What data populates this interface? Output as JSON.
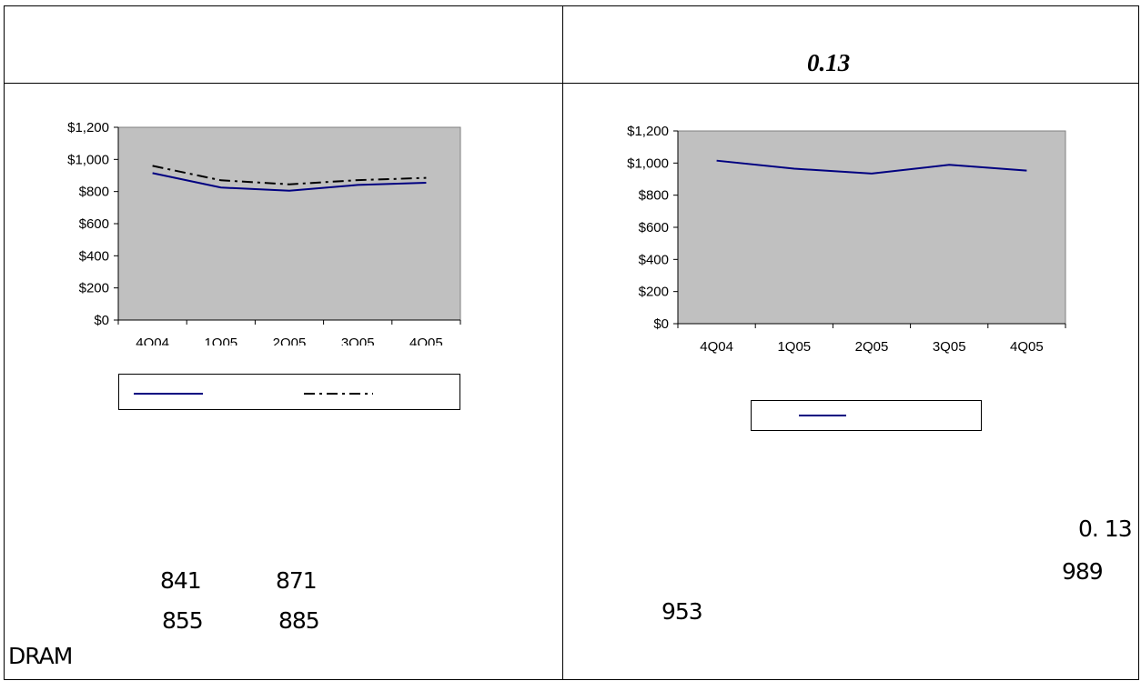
{
  "header": {
    "right_title": "0.13"
  },
  "colors": {
    "plot_bg": "#c0c0c0",
    "series_solid": "#000080",
    "series_dash": "#000000",
    "axis": "#000000"
  },
  "chart_data": [
    {
      "type": "line",
      "categories": [
        "4Q04",
        "1Q05",
        "2Q05",
        "3Q05",
        "4Q05"
      ],
      "ylim": [
        0,
        1200
      ],
      "yticks": [
        "$0",
        "$200",
        "$400",
        "$600",
        "$800",
        "$1,000",
        "$1,200"
      ],
      "yticks_values": [
        0,
        200,
        400,
        600,
        800,
        1000,
        1200
      ],
      "grid": false,
      "legend": "bottom",
      "series": [
        {
          "values": [
            915,
            825,
            805,
            841,
            855
          ],
          "style": "solid"
        },
        {
          "values": [
            960,
            870,
            845,
            871,
            885
          ],
          "style": "dash-dot"
        }
      ]
    },
    {
      "type": "line",
      "categories": [
        "4Q04",
        "1Q05",
        "2Q05",
        "3Q05",
        "4Q05"
      ],
      "ylim": [
        0,
        1200
      ],
      "yticks": [
        "$0",
        "$200",
        "$400",
        "$600",
        "$800",
        "$1,000",
        "$1,200"
      ],
      "yticks_values": [
        0,
        200,
        400,
        600,
        800,
        1000,
        1200
      ],
      "grid": false,
      "legend": "bottom",
      "series": [
        {
          "values": [
            1015,
            965,
            935,
            989,
            953
          ],
          "style": "solid"
        }
      ]
    }
  ],
  "left_notes": {
    "a": "841",
    "b": "871",
    "c": "855",
    "d": "885",
    "e": "DRAM"
  },
  "right_notes": {
    "a": "0. 13",
    "b": "989",
    "c": "953"
  }
}
